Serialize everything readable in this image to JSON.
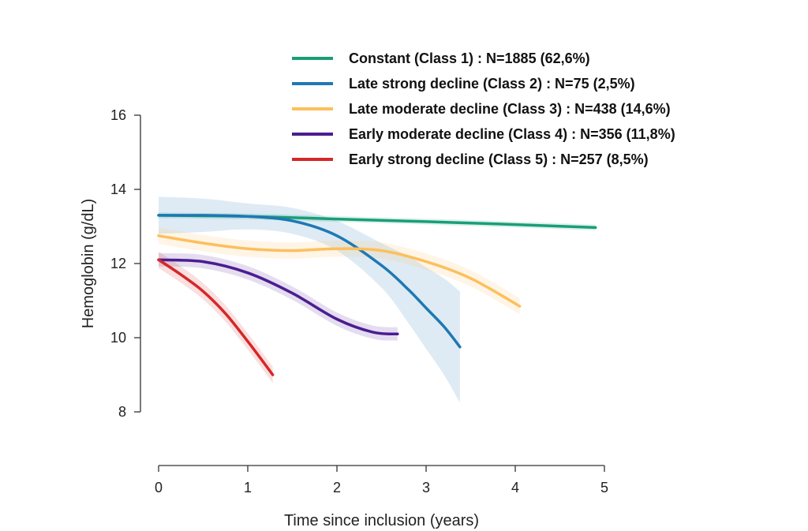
{
  "chart_data": {
    "type": "line",
    "title": "",
    "xlabel": "Time since inclusion (years)",
    "ylabel": "Hemoglobin (g/dL)",
    "xlim": [
      0,
      5
    ],
    "ylim": [
      8,
      16
    ],
    "xticks": [
      0,
      1,
      2,
      3,
      4,
      5
    ],
    "yticks": [
      8,
      10,
      12,
      14,
      16
    ],
    "grid": false,
    "legend_position": "top-right",
    "series": [
      {
        "name": "Constant (Class 1) : N=1885 (62,6%)",
        "color": "#1a9e77",
        "x": [
          0,
          1,
          2,
          3,
          4,
          4.9
        ],
        "y": [
          13.3,
          13.27,
          13.2,
          13.13,
          13.05,
          12.97
        ],
        "band": 0.08
      },
      {
        "name": "Late strong decline (Class 2) : N=75 (2,5%)",
        "color": "#1f78b4",
        "x": [
          0,
          0.5,
          1,
          1.5,
          2,
          2.5,
          2.8,
          3.0,
          3.2,
          3.38
        ],
        "y": [
          13.3,
          13.3,
          13.27,
          13.15,
          12.75,
          11.95,
          11.3,
          10.8,
          10.3,
          9.75
        ],
        "band_width": [
          0.5,
          0.45,
          0.35,
          0.35,
          0.4,
          0.6,
          0.9,
          1.1,
          1.3,
          1.5
        ]
      },
      {
        "name": "Late moderate decline (Class 3) : N=438 (14,6%)",
        "color": "#fdbf5c",
        "x": [
          0,
          0.5,
          1,
          1.5,
          2,
          2.5,
          3,
          3.5,
          4.05
        ],
        "y": [
          12.75,
          12.55,
          12.4,
          12.35,
          12.4,
          12.35,
          12.05,
          11.6,
          10.85
        ],
        "band": 0.22
      },
      {
        "name": "Early moderate decline (Class 4) : N=356 (11,8%)",
        "color": "#4b1d91",
        "x": [
          0,
          0.5,
          1,
          1.5,
          2,
          2.4,
          2.68
        ],
        "y": [
          12.1,
          12.05,
          11.75,
          11.2,
          10.5,
          10.15,
          10.1
        ],
        "band": 0.18
      },
      {
        "name": "Early strong decline (Class 5) : N=257 (8,5%)",
        "color": "#d62728",
        "x": [
          0,
          0.25,
          0.5,
          0.75,
          1.0,
          1.28
        ],
        "y": [
          12.1,
          11.7,
          11.25,
          10.65,
          9.9,
          9.0
        ],
        "band": 0.22
      }
    ]
  }
}
